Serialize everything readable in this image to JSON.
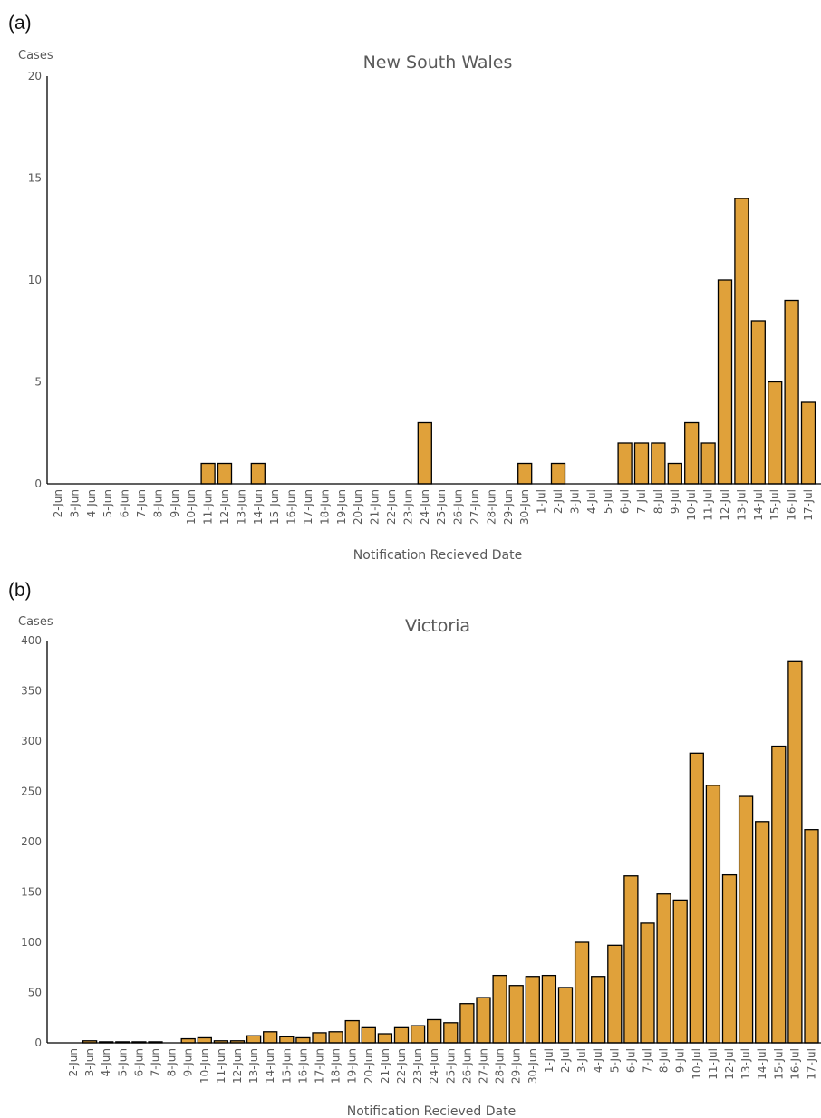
{
  "panels": [
    {
      "letter": "(a)"
    },
    {
      "letter": "(b)"
    }
  ],
  "colors": {
    "bar": "#E0A13A",
    "bar_stroke": "#000000",
    "text": "#595959"
  },
  "chart_data": [
    {
      "type": "bar",
      "title": "New South Wales",
      "ylabel": "Cases",
      "xlabel": "Notification Recieved Date",
      "ylim": [
        0,
        20
      ],
      "yticks": [
        0,
        5,
        10,
        15,
        20
      ],
      "grid": false,
      "categories": [
        "2-Jun",
        "3-Jun",
        "4-Jun",
        "5-Jun",
        "6-Jun",
        "7-Jun",
        "8-Jun",
        "9-Jun",
        "10-Jun",
        "11-Jun",
        "12-Jun",
        "13-Jun",
        "14-Jun",
        "15-Jun",
        "16-Jun",
        "17-Jun",
        "18-Jun",
        "19-Jun",
        "20-Jun",
        "21-Jun",
        "22-Jun",
        "23-Jun",
        "24-Jun",
        "25-Jun",
        "26-Jun",
        "27-Jun",
        "28-Jun",
        "29-Jun",
        "30-Jun",
        "1-Jul",
        "2-Jul",
        "3-Jul",
        "4-Jul",
        "5-Jul",
        "6-Jul",
        "7-Jul",
        "8-Jul",
        "9-Jul",
        "10-Jul",
        "11-Jul",
        "12-Jul",
        "13-Jul",
        "14-Jul",
        "15-Jul",
        "16-Jul",
        "17-Jul"
      ],
      "values": [
        0,
        0,
        0,
        0,
        0,
        0,
        0,
        0,
        0,
        1,
        1,
        0,
        1,
        0,
        0,
        0,
        0,
        0,
        0,
        0,
        0,
        0,
        3,
        0,
        0,
        0,
        0,
        0,
        1,
        0,
        1,
        0,
        0,
        0,
        2,
        2,
        2,
        1,
        3,
        2,
        10,
        14,
        8,
        5,
        9,
        4
      ]
    },
    {
      "type": "bar",
      "title": "Victoria",
      "ylabel": "Cases",
      "xlabel": "Notification Recieved Date",
      "ylim": [
        0,
        400
      ],
      "yticks": [
        0,
        50,
        100,
        150,
        200,
        250,
        300,
        350,
        400
      ],
      "grid": false,
      "categories": [
        "2-Jun",
        "3-Jun",
        "4-Jun",
        "5-Jun",
        "6-Jun",
        "7-Jun",
        "8-Jun",
        "9-Jun",
        "10-Jun",
        "11-Jun",
        "12-Jun",
        "13-Jun",
        "14-Jun",
        "15-Jun",
        "16-Jun",
        "17-Jun",
        "18-Jun",
        "19-Jun",
        "20-Jun",
        "21-Jun",
        "22-Jun",
        "23-Jun",
        "24-Jun",
        "25-Jun",
        "26-Jun",
        "27-Jun",
        "28-Jun",
        "29-Jun",
        "30-Jun",
        "1-Jul",
        "2-Jul",
        "3-Jul",
        "4-Jul",
        "5-Jul",
        "6-Jul",
        "7-Jul",
        "8-Jul",
        "9-Jul",
        "10-Jul",
        "11-Jul",
        "12-Jul",
        "13-Jul",
        "14-Jul",
        "15-Jul",
        "16-Jul",
        "17-Jul"
      ],
      "values": [
        0,
        2,
        1,
        1,
        1,
        1,
        0,
        4,
        5,
        2,
        2,
        7,
        11,
        6,
        5,
        10,
        11,
        22,
        15,
        9,
        15,
        17,
        23,
        20,
        39,
        45,
        67,
        57,
        66,
        67,
        55,
        100,
        66,
        97,
        166,
        119,
        148,
        142,
        288,
        256,
        167,
        245,
        220,
        295,
        379,
        212
      ]
    }
  ]
}
